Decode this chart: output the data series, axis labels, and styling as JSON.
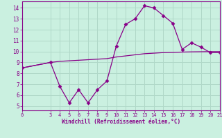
{
  "xlabel": "Windchill (Refroidissement éolien,°C)",
  "bg_color": "#caf0e0",
  "grid_color": "#b0d8c8",
  "line_color": "#880088",
  "x_windchill": [
    0,
    3,
    4,
    5,
    6,
    7,
    8,
    9,
    10,
    11,
    12,
    13,
    14,
    15,
    16,
    17,
    18,
    19,
    20,
    21
  ],
  "y_windchill": [
    8.5,
    9.0,
    6.8,
    5.3,
    6.5,
    5.3,
    6.5,
    7.3,
    10.5,
    12.5,
    13.0,
    14.2,
    14.0,
    13.3,
    12.6,
    10.2,
    10.8,
    10.4,
    9.9,
    9.9
  ],
  "x_smooth": [
    0,
    3,
    4,
    5,
    6,
    7,
    8,
    9,
    10,
    11,
    12,
    13,
    14,
    15,
    16,
    17,
    18,
    19,
    20,
    21
  ],
  "y_smooth": [
    8.5,
    9.0,
    9.1,
    9.15,
    9.2,
    9.25,
    9.3,
    9.35,
    9.5,
    9.6,
    9.7,
    9.8,
    9.85,
    9.9,
    9.92,
    9.95,
    9.97,
    9.98,
    9.99,
    9.99
  ],
  "yticks": [
    5,
    6,
    7,
    8,
    9,
    10,
    11,
    12,
    13,
    14
  ],
  "xlim": [
    0,
    21
  ],
  "ylim": [
    4.6,
    14.6
  ],
  "xticks": [
    0,
    3,
    4,
    5,
    6,
    7,
    8,
    9,
    10,
    11,
    12,
    13,
    14,
    15,
    16,
    17,
    18,
    19,
    20,
    21
  ]
}
